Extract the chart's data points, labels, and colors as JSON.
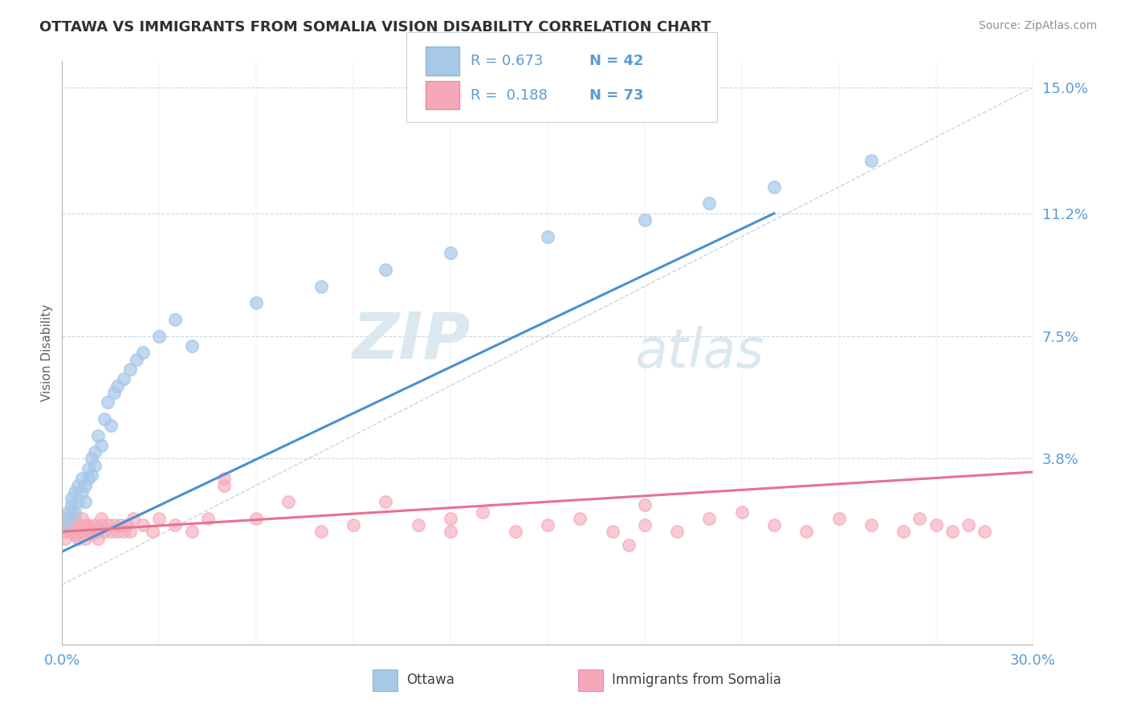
{
  "title": "OTTAWA VS IMMIGRANTS FROM SOMALIA VISION DISABILITY CORRELATION CHART",
  "source": "Source: ZipAtlas.com",
  "ylabel": "Vision Disability",
  "yticks": [
    0.0,
    0.038,
    0.075,
    0.112,
    0.15
  ],
  "ytick_labels": [
    "",
    "3.8%",
    "7.5%",
    "11.2%",
    "15.0%"
  ],
  "xmin": 0.0,
  "xmax": 0.3,
  "ymin": -0.018,
  "ymax": 0.158,
  "legend_r1": "0.673",
  "legend_n1": "42",
  "legend_r2": "0.188",
  "legend_n2": "73",
  "color_ottawa": "#a8c8e8",
  "color_somalia": "#f4a8b8",
  "color_line_ottawa": "#4a90d0",
  "color_line_somalia": "#e87090",
  "color_axis": "#5b9bd5",
  "color_grid": "#c8d8e8",
  "color_title": "#303030",
  "color_source": "#909090",
  "watermark_zip": "ZIP",
  "watermark_atlas": "atlas",
  "watermark_color": "#dce8f0",
  "ottawa_x": [
    0.001,
    0.002,
    0.002,
    0.003,
    0.003,
    0.004,
    0.004,
    0.005,
    0.005,
    0.006,
    0.006,
    0.007,
    0.007,
    0.008,
    0.008,
    0.009,
    0.009,
    0.01,
    0.01,
    0.011,
    0.012,
    0.013,
    0.014,
    0.015,
    0.016,
    0.017,
    0.019,
    0.021,
    0.023,
    0.025,
    0.03,
    0.035,
    0.04,
    0.06,
    0.08,
    0.1,
    0.12,
    0.15,
    0.18,
    0.2,
    0.22,
    0.25
  ],
  "ottawa_y": [
    0.018,
    0.02,
    0.022,
    0.024,
    0.026,
    0.022,
    0.028,
    0.025,
    0.03,
    0.028,
    0.032,
    0.03,
    0.025,
    0.032,
    0.035,
    0.038,
    0.033,
    0.036,
    0.04,
    0.045,
    0.042,
    0.05,
    0.055,
    0.048,
    0.058,
    0.06,
    0.062,
    0.065,
    0.068,
    0.07,
    0.075,
    0.08,
    0.072,
    0.085,
    0.09,
    0.095,
    0.1,
    0.105,
    0.11,
    0.115,
    0.12,
    0.128
  ],
  "somalia_x": [
    0.001,
    0.001,
    0.002,
    0.002,
    0.003,
    0.003,
    0.003,
    0.004,
    0.004,
    0.005,
    0.005,
    0.005,
    0.006,
    0.006,
    0.007,
    0.007,
    0.008,
    0.008,
    0.009,
    0.009,
    0.01,
    0.01,
    0.011,
    0.011,
    0.012,
    0.012,
    0.013,
    0.014,
    0.015,
    0.016,
    0.017,
    0.018,
    0.019,
    0.02,
    0.021,
    0.022,
    0.025,
    0.028,
    0.03,
    0.035,
    0.04,
    0.045,
    0.05,
    0.06,
    0.07,
    0.08,
    0.09,
    0.1,
    0.11,
    0.12,
    0.13,
    0.14,
    0.15,
    0.16,
    0.17,
    0.175,
    0.18,
    0.19,
    0.2,
    0.21,
    0.22,
    0.23,
    0.24,
    0.25,
    0.26,
    0.265,
    0.27,
    0.275,
    0.28,
    0.285,
    0.18,
    0.05,
    0.12
  ],
  "somalia_y": [
    0.016,
    0.014,
    0.018,
    0.02,
    0.016,
    0.018,
    0.022,
    0.015,
    0.02,
    0.016,
    0.018,
    0.014,
    0.02,
    0.016,
    0.018,
    0.014,
    0.016,
    0.018,
    0.015,
    0.017,
    0.016,
    0.018,
    0.014,
    0.016,
    0.018,
    0.02,
    0.016,
    0.018,
    0.016,
    0.018,
    0.016,
    0.018,
    0.016,
    0.018,
    0.016,
    0.02,
    0.018,
    0.016,
    0.02,
    0.018,
    0.016,
    0.02,
    0.03,
    0.02,
    0.025,
    0.016,
    0.018,
    0.025,
    0.018,
    0.02,
    0.022,
    0.016,
    0.018,
    0.02,
    0.016,
    0.012,
    0.018,
    0.016,
    0.02,
    0.022,
    0.018,
    0.016,
    0.02,
    0.018,
    0.016,
    0.02,
    0.018,
    0.016,
    0.018,
    0.016,
    0.024,
    0.032,
    0.016
  ],
  "ottawa_trend_x0": 0.0,
  "ottawa_trend_y0": 0.01,
  "ottawa_trend_x1": 0.22,
  "ottawa_trend_y1": 0.112,
  "somalia_trend_x0": 0.0,
  "somalia_trend_y0": 0.016,
  "somalia_trend_x1": 0.3,
  "somalia_trend_y1": 0.034
}
